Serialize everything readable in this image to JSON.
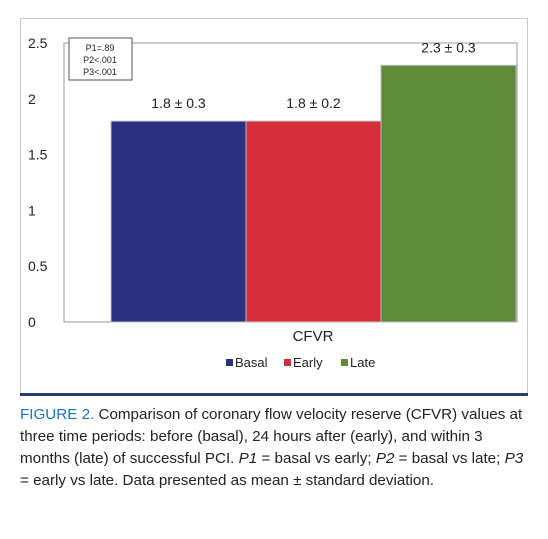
{
  "chart_data": {
    "type": "bar",
    "categories": [
      "CFVR"
    ],
    "series": [
      {
        "name": "Basal",
        "values": [
          1.8
        ],
        "label": "1.8 ± 0.3",
        "color": "#2a3182"
      },
      {
        "name": "Early",
        "values": [
          1.8
        ],
        "label": "1.8 ± 0.2",
        "color": "#d42f3a"
      },
      {
        "name": "Late",
        "values": [
          2.3
        ],
        "label": "2.3 ± 0.3",
        "color": "#5e8a3a"
      }
    ],
    "ylim": [
      0,
      2.5
    ],
    "yticks": [
      "0",
      "0.5",
      "1",
      "1.5",
      "2",
      "2.5"
    ],
    "ytick_values": [
      0,
      0.5,
      1,
      1.5,
      2,
      2.5
    ],
    "xlabel": "CFVR",
    "legend_position": "bottom",
    "grid": false,
    "annotation_lines": [
      "P1=.89",
      "P2<.001",
      "P3<.001"
    ]
  },
  "caption": {
    "label": "FIGURE 2.",
    "text1": " Comparison of coronary flow velocity reserve (CFVR) values at three time periods: before (basal), 24 hours after (early), and within 3 months (late) of successful PCI. ",
    "p1": "P1",
    "text2": " = basal vs early; ",
    "p2": "P2",
    "text3": " = basal vs late; ",
    "p3": "P3",
    "text4": " = early vs late. Data presented as mean ± standard deviation."
  }
}
